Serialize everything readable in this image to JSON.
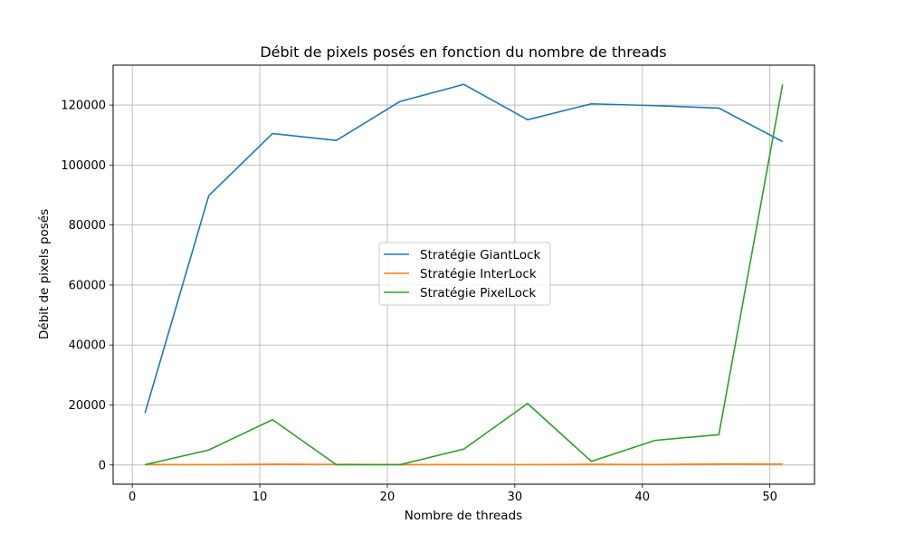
{
  "chart_data": {
    "type": "line",
    "title": "Débit de pixels posés en fonction du nombre de threads",
    "xlabel": "Nombre de threads",
    "ylabel": "Débit de pixels posés",
    "x": [
      1,
      6,
      11,
      16,
      21,
      26,
      31,
      36,
      41,
      46,
      51
    ],
    "xlim": [
      -1.5,
      53.5
    ],
    "ylim": [
      -6400,
      133300
    ],
    "xticks": [
      0,
      10,
      20,
      30,
      40,
      50
    ],
    "yticks": [
      0,
      20000,
      40000,
      60000,
      80000,
      100000,
      120000
    ],
    "grid": true,
    "legend_position": "center",
    "series": [
      {
        "name": "Stratégie GiantLock",
        "color": "#1f77b4",
        "values": [
          17300,
          89800,
          110500,
          108200,
          121200,
          126900,
          115100,
          120400,
          119800,
          119000,
          107800
        ]
      },
      {
        "name": "Stratégie InterLock",
        "color": "#ff7f0e",
        "values": [
          150,
          100,
          250,
          200,
          120,
          150,
          100,
          220,
          150,
          320,
          300
        ]
      },
      {
        "name": "Stratégie PixelLock",
        "color": "#2ca02c",
        "values": [
          100,
          5000,
          15100,
          100,
          100,
          5300,
          20500,
          1200,
          8200,
          10100,
          126900
        ]
      }
    ]
  }
}
